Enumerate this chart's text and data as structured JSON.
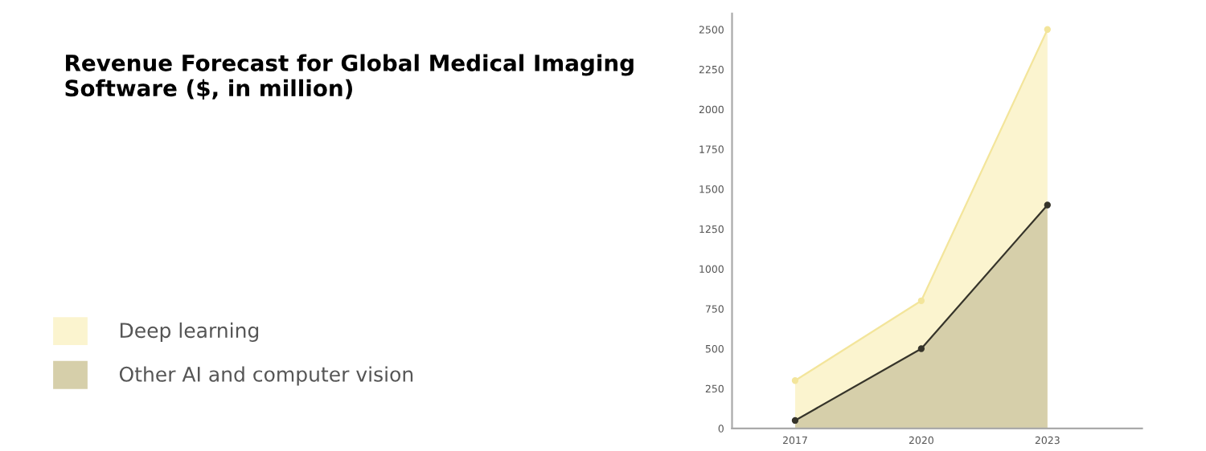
{
  "chart_data": {
    "type": "area",
    "title": "Revenue Forecast for Global Medical Imaging\nSoftware ($, in million)",
    "categories": [
      "2017",
      "2020",
      "2023"
    ],
    "series": [
      {
        "name": "Deep learning",
        "color": "#fbf4cf",
        "values": [
          300,
          800,
          2500
        ]
      },
      {
        "name": "Other AI and computer vision",
        "color": "#d6cfaa",
        "values": [
          50,
          500,
          1400
        ]
      }
    ],
    "ylim": [
      0,
      2600
    ],
    "yticks": [
      0,
      250,
      500,
      750,
      1000,
      1250,
      1500,
      1750,
      2000,
      2250,
      2500
    ],
    "grid": false,
    "legend": "left",
    "marker": "circle"
  }
}
